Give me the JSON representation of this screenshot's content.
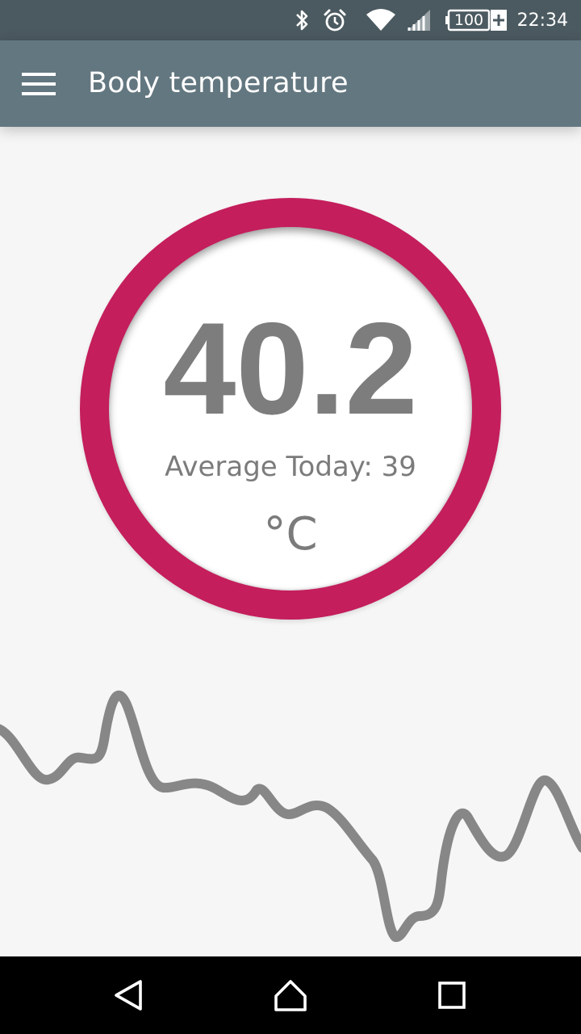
{
  "status_bar": {
    "time": "22:34",
    "battery_level": "100",
    "icons": [
      "bluetooth-icon",
      "alarm-icon",
      "wifi-icon",
      "cell-signal-icon",
      "battery-icon"
    ]
  },
  "app_bar": {
    "title": "Body temperature",
    "menu_icon": "menu-icon"
  },
  "reading": {
    "value": "40.2",
    "average": "Average Today: 39",
    "unit": "°C"
  },
  "colors": {
    "status_bar": "#4b5a60",
    "app_bar": "#637780",
    "accent_ring": "#c41e5c",
    "text_gray": "#7b7b7b",
    "trend_line": "#878787",
    "background": "#f6f6f6"
  },
  "navigation": {
    "icons": [
      "back-icon",
      "home-icon",
      "recents-icon"
    ]
  }
}
